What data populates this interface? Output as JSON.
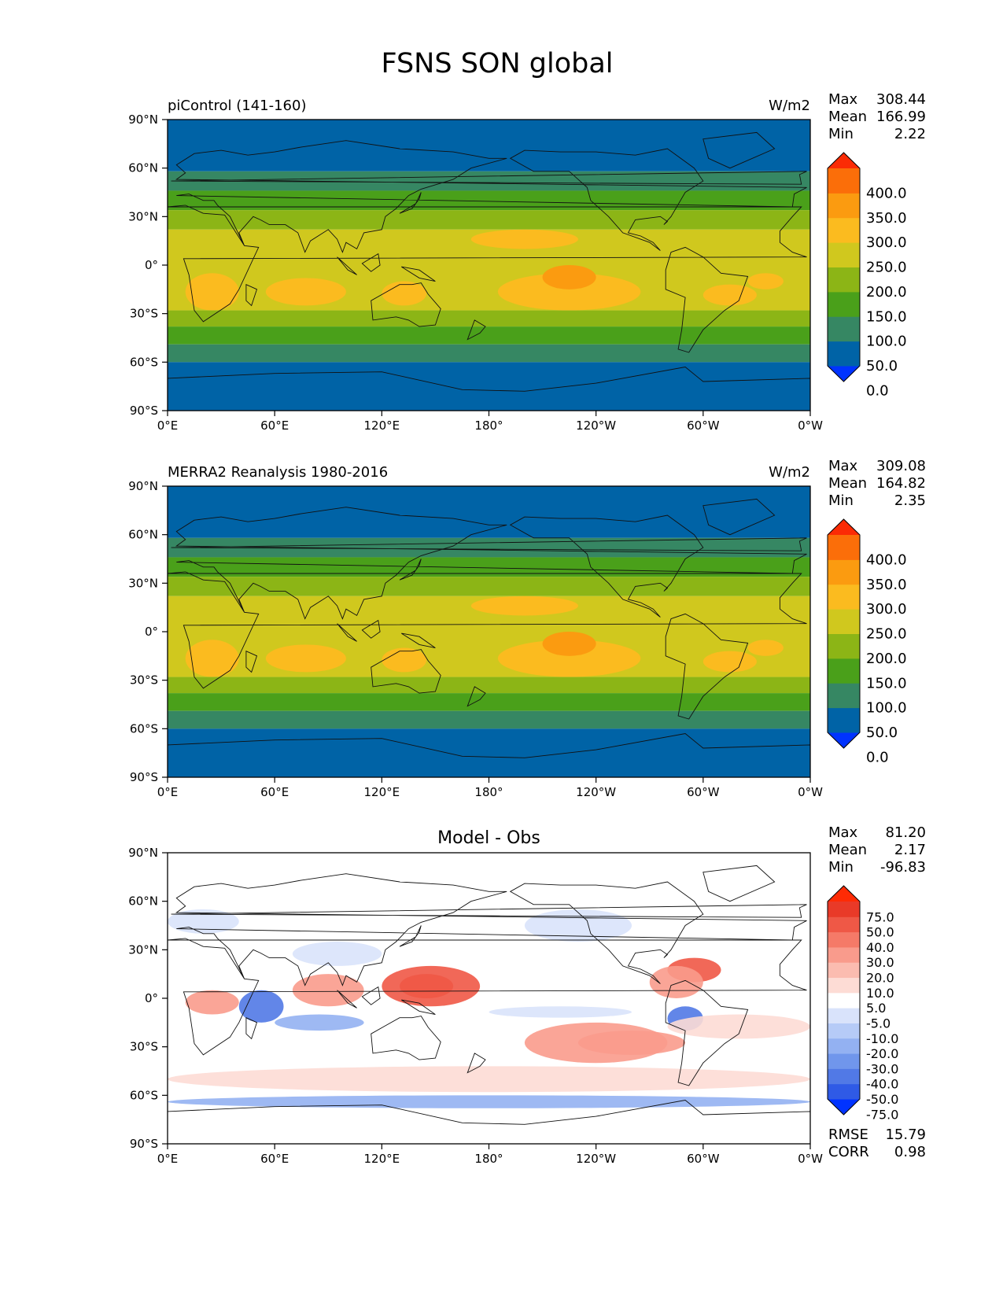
{
  "figure": {
    "title": "FSNS SON global"
  },
  "axes": {
    "lat_ticks": [
      "90°N",
      "60°N",
      "30°N",
      "0°",
      "30°S",
      "60°S",
      "90°S"
    ],
    "lon_ticks": [
      "0°E",
      "60°E",
      "120°E",
      "180°",
      "120°W",
      "60°W",
      "0°W"
    ]
  },
  "panels": [
    {
      "title_left": "piControl (141-160)",
      "title_right": "W/m2",
      "stats": [
        [
          "Max",
          "308.44"
        ],
        [
          "Mean",
          "166.99"
        ],
        [
          "Min",
          "2.22"
        ]
      ],
      "colorbar": {
        "labels": [
          "400.0",
          "350.0",
          "300.0",
          "250.0",
          "200.0",
          "150.0",
          "100.0",
          "50.0",
          "0.0"
        ],
        "colors": [
          "#0033ff",
          "#0063a6",
          "#368763",
          "#4aa01a",
          "#8cb516",
          "#d0c81e",
          "#fbbb1f",
          "#fb9b10",
          "#fb6e09",
          "#fb2b05"
        ]
      },
      "field_colors": {
        "polar": "#0063a6",
        "subpolar": "#368763",
        "mid": "#4aa01a",
        "subtrop": "#8cb516",
        "trop": "#d0c81e",
        "warm": "#fbbb1f",
        "hot": "#fb9b10"
      }
    },
    {
      "title_left": "MERRA2 Reanalysis 1980-2016",
      "title_right": "W/m2",
      "stats": [
        [
          "Max",
          "309.08"
        ],
        [
          "Mean",
          "164.82"
        ],
        [
          "Min",
          "2.35"
        ]
      ],
      "colorbar": {
        "labels": [
          "400.0",
          "350.0",
          "300.0",
          "250.0",
          "200.0",
          "150.0",
          "100.0",
          "50.0",
          "0.0"
        ],
        "colors": [
          "#0033ff",
          "#0063a6",
          "#368763",
          "#4aa01a",
          "#8cb516",
          "#d0c81e",
          "#fbbb1f",
          "#fb9b10",
          "#fb6e09",
          "#fb2b05"
        ]
      },
      "field_colors": {
        "polar": "#0063a6",
        "subpolar": "#368763",
        "mid": "#4aa01a",
        "subtrop": "#8cb516",
        "trop": "#d0c81e",
        "warm": "#fbbb1f",
        "hot": "#fb9b10"
      }
    },
    {
      "title_center": "Model - Obs",
      "stats": [
        [
          "Max",
          "81.20"
        ],
        [
          "Mean",
          "2.17"
        ],
        [
          "Min",
          "-96.83"
        ]
      ],
      "extra_stats": [
        [
          "RMSE",
          "15.79"
        ],
        [
          "CORR",
          "0.98"
        ]
      ],
      "colorbar": {
        "labels": [
          "75.0",
          "50.0",
          "40.0",
          "30.0",
          "20.0",
          "10.0",
          "5.0",
          "-5.0",
          "-10.0",
          "-20.0",
          "-30.0",
          "-40.0",
          "-50.0",
          "-75.0"
        ],
        "colors": [
          "#0033ff",
          "#2f5ae6",
          "#5179e6",
          "#7096ec",
          "#93b1f2",
          "#b6cbf7",
          "#d9e3fb",
          "#ffffff",
          "#fddcd5",
          "#fbbcb0",
          "#f99b8c",
          "#f57a68",
          "#ef5846",
          "#e93a28",
          "#fe2b05"
        ]
      },
      "field_colors": {
        "pos1": "#fddcd5",
        "pos2": "#f99b8c",
        "pos3": "#ef5846",
        "neg1": "#d9e3fb",
        "neg2": "#93b1f2",
        "neg3": "#5179e6"
      }
    }
  ],
  "chart_data": [
    {
      "type": "heatmap",
      "title": "piControl (141-160)",
      "units": "W/m2",
      "x": "longitude",
      "xlim": [
        0,
        360
      ],
      "y": "latitude",
      "ylim": [
        -90,
        90
      ],
      "stats": {
        "max": 308.44,
        "mean": 166.99,
        "min": 2.22
      },
      "levels": [
        0,
        50,
        100,
        150,
        200,
        250,
        300,
        350,
        400
      ]
    },
    {
      "type": "heatmap",
      "title": "MERRA2 Reanalysis 1980-2016",
      "units": "W/m2",
      "x": "longitude",
      "xlim": [
        0,
        360
      ],
      "y": "latitude",
      "ylim": [
        -90,
        90
      ],
      "stats": {
        "max": 309.08,
        "mean": 164.82,
        "min": 2.35
      },
      "levels": [
        0,
        50,
        100,
        150,
        200,
        250,
        300,
        350,
        400
      ]
    },
    {
      "type": "heatmap",
      "title": "Model - Obs",
      "x": "longitude",
      "xlim": [
        0,
        360
      ],
      "y": "latitude",
      "ylim": [
        -90,
        90
      ],
      "stats": {
        "max": 81.2,
        "mean": 2.17,
        "min": -96.83,
        "rmse": 15.79,
        "corr": 0.98
      },
      "levels": [
        -75,
        -50,
        -40,
        -30,
        -20,
        -10,
        -5,
        5,
        10,
        20,
        30,
        40,
        50,
        75
      ]
    }
  ]
}
